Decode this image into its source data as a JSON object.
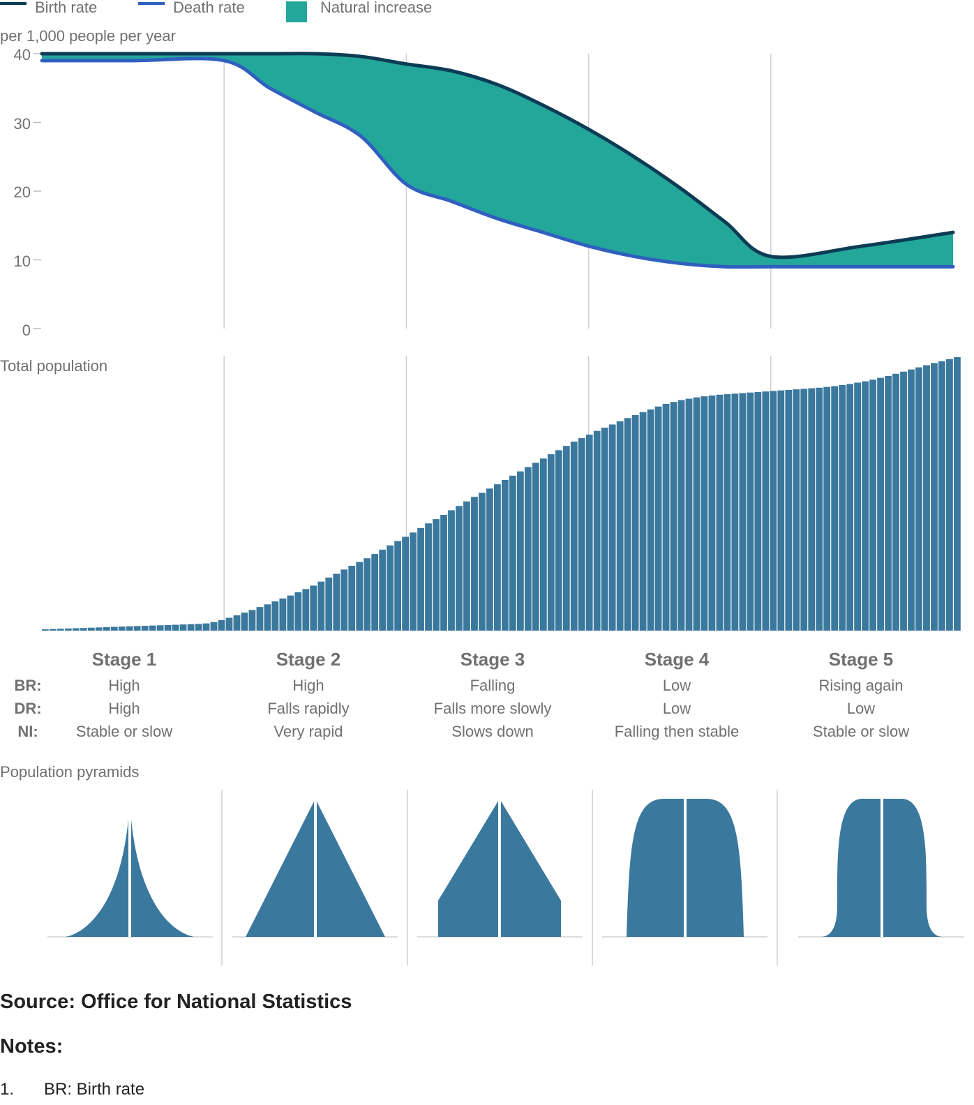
{
  "legend": {
    "birth_rate": "Birth rate",
    "death_rate": "Death rate",
    "natural_increase": "Natural increase"
  },
  "colors": {
    "birth_rate": "#0c3c55",
    "death_rate": "#2f5fbf",
    "natural_increase": "#24a79b",
    "population_bars": "#3b789d",
    "gridline": "#cfcfcf",
    "text": "#707070"
  },
  "chart_data": [
    {
      "type": "line",
      "ylabel": "per 1,000 people per year",
      "ylim": [
        0,
        40
      ],
      "yticks": [
        "40",
        "30",
        "20",
        "10",
        "0"
      ],
      "x": [
        0,
        0.5,
        1.0,
        1.25,
        1.5,
        1.75,
        2.0,
        2.25,
        2.5,
        2.75,
        3.0,
        3.25,
        3.5,
        3.75,
        4.0,
        4.5,
        5.0
      ],
      "series": [
        {
          "name": "Birth rate",
          "values": [
            40,
            40,
            40,
            40,
            40,
            39.6,
            38.5,
            37.5,
            35.5,
            32.5,
            29,
            25,
            20.5,
            15.5,
            10.5,
            12,
            14
          ]
        },
        {
          "name": "Death rate",
          "values": [
            39,
            39,
            39,
            35,
            31.5,
            28,
            21,
            18.5,
            16,
            14,
            12,
            10.5,
            9.5,
            9,
            9,
            9,
            9
          ]
        }
      ],
      "fill_between": "Natural increase",
      "grid": "vertical lines at stage boundaries"
    },
    {
      "type": "bar",
      "title": "Total population",
      "values": [
        0.5,
        0.6,
        0.7,
        0.8,
        0.9,
        1.0,
        1.1,
        1.2,
        1.3,
        1.4,
        1.5,
        1.6,
        1.7,
        1.8,
        1.9,
        2.0,
        2.1,
        2.2,
        2.3,
        2.4,
        2.5,
        2.7,
        3.2,
        3.9,
        4.8,
        5.7,
        6.7,
        7.7,
        8.8,
        9.8,
        10.9,
        12.0,
        13.1,
        14.3,
        15.5,
        16.8,
        18.3,
        19.8,
        21.2,
        22.8,
        24.2,
        25.6,
        27.0,
        28.6,
        30.2,
        31.8,
        33.4,
        35.0,
        36.6,
        38.3,
        40.0,
        41.6,
        43.2,
        44.9,
        46.5,
        48.2,
        49.9,
        51.4,
        53.0,
        54.6,
        56.2,
        57.8,
        59.4,
        61.0,
        62.6,
        64.2,
        65.8,
        67.3,
        68.9,
        70.5,
        71.8,
        73.1,
        74.5,
        75.7,
        76.9,
        78.1,
        79.3,
        80.4,
        81.5,
        82.5,
        83.6,
        84.6,
        85.3,
        86.0,
        86.5,
        87.0,
        87.4,
        87.7,
        88.0,
        88.2,
        88.4,
        88.6,
        88.8,
        89.0,
        89.2,
        89.4,
        89.6,
        89.8,
        90.0,
        90.2,
        90.4,
        90.6,
        90.9,
        91.2,
        91.6,
        92.0,
        92.5,
        93.0,
        93.6,
        94.3,
        95.0,
        95.8,
        96.6,
        97.4,
        98.2,
        99.0,
        99.8,
        100.5,
        101.3,
        102.0
      ]
    }
  ],
  "stages": [
    {
      "title": "Stage 1",
      "br": "High",
      "dr": "High",
      "ni": "Stable or slow",
      "pyramid": "concave"
    },
    {
      "title": "Stage 2",
      "br": "High",
      "dr": "Falls rapidly",
      "ni": "Very rapid",
      "pyramid": "triangle"
    },
    {
      "title": "Stage 3",
      "br": "Falling",
      "dr": "Falls more slowly",
      "ni": "Slows down",
      "pyramid": "truncated-triangle"
    },
    {
      "title": "Stage 4",
      "br": "Low",
      "dr": "Low",
      "ni": "Falling then stable",
      "pyramid": "beehive"
    },
    {
      "title": "Stage 5",
      "br": "Rising again",
      "dr": "Low",
      "ni": "Stable or slow",
      "pyramid": "column-flared"
    }
  ],
  "row_labels": {
    "br": "BR:",
    "dr": "DR:",
    "ni": "NI:"
  },
  "pyramids_title": "Population pyramids",
  "source": "Source: Office for National Statistics",
  "notes_title": "Notes:",
  "notes": [
    {
      "number": "1.",
      "text": "BR: Birth rate"
    }
  ]
}
